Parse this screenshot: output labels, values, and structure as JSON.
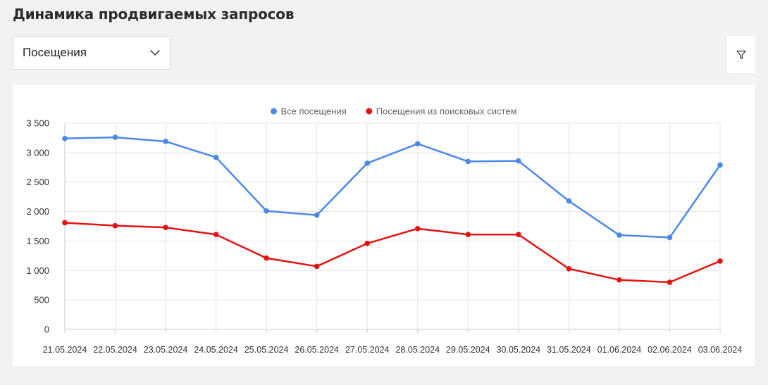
{
  "header": {
    "title": "Динамика продвигаемых запросов"
  },
  "metric_select": {
    "value": "Посещения",
    "icon": "chevron-down-icon"
  },
  "filter_button": {
    "icon": "filter-icon"
  },
  "chart_data": {
    "type": "line",
    "title": "",
    "xlabel": "",
    "ylabel": "",
    "legend_position": "top-center",
    "grid": true,
    "ylim": [
      0,
      3500
    ],
    "y_ticks": [
      0,
      500,
      1000,
      1500,
      2000,
      2500,
      3000,
      3500
    ],
    "y_tick_labels": [
      "0",
      "500",
      "1 000",
      "1 500",
      "2 000",
      "2 500",
      "3 000",
      "3 500"
    ],
    "x": [
      "21.05.2024",
      "22.05.2024",
      "23.05.2024",
      "24.05.2024",
      "25.05.2024",
      "26.05.2024",
      "27.05.2024",
      "28.05.2024",
      "29.05.2024",
      "30.05.2024",
      "31.05.2024",
      "01.06.2024",
      "02.06.2024",
      "03.06.2024"
    ],
    "series": [
      {
        "name": "Все посещения",
        "color": "#4a89e8",
        "values": [
          3240,
          3260,
          3190,
          2920,
          2010,
          1940,
          2820,
          3150,
          2850,
          2860,
          2180,
          1600,
          1560,
          2790
        ]
      },
      {
        "name": "Посещения из поисковых систем",
        "color": "#e31313",
        "values": [
          1810,
          1760,
          1730,
          1610,
          1210,
          1070,
          1460,
          1710,
          1610,
          1610,
          1030,
          840,
          800,
          1160
        ]
      }
    ]
  }
}
